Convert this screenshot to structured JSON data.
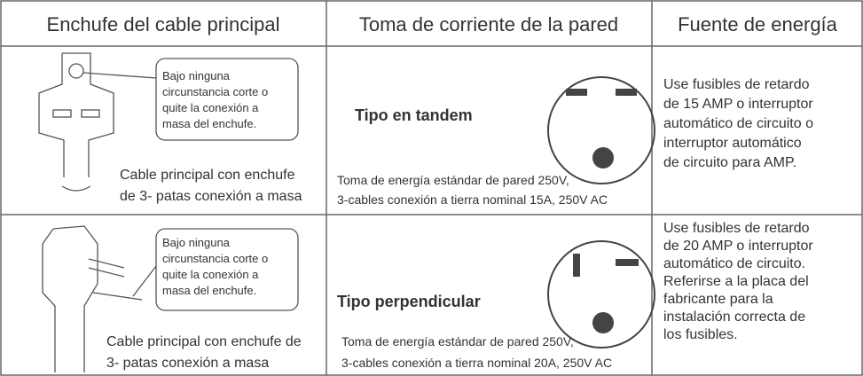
{
  "table": {
    "header": [
      "Enchufe del cable principal",
      "Toma de corriente de la pared",
      "Fuente de energía"
    ],
    "rows": [
      {
        "warning": [
          "Bajo ninguna",
          "circunstancia corte o",
          "quite la conexión a",
          "masa del enchufe."
        ],
        "plug_caption": [
          "Cable principal con enchufe",
          "de 3- patas conexión a masa"
        ],
        "outlet_type": "Tipo en tandem",
        "outlet_caption": [
          "Toma de energía estándar de pared 250V,",
          "3-cables conexión a tierra nominal 15A, 250V AC"
        ],
        "power": [
          "Use fusibles de retardo",
          "de 15 AMP o interruptor",
          "automático de circuito  o",
          "interruptor automático",
          "de circuito para AMP."
        ]
      },
      {
        "warning": [
          "Bajo ninguna",
          "circunstancia corte o",
          "quite la conexión a",
          "masa del enchufe."
        ],
        "plug_caption": [
          "Cable principal con enchufe de",
          "3- patas conexión a masa"
        ],
        "outlet_type": "Tipo perpendicular",
        "outlet_caption": [
          "Toma de energía estándar de pared 250V,",
          "3-cables conexión a tierra nominal 20A, 250V AC"
        ],
        "power": [
          "Use fusibles de retardo",
          "de 20 AMP o interruptor",
          "automático de circuito.",
          "Referirse a la placa del",
          "fabricante para la",
          "instalación correcta de",
          "los fusibles."
        ]
      }
    ]
  }
}
